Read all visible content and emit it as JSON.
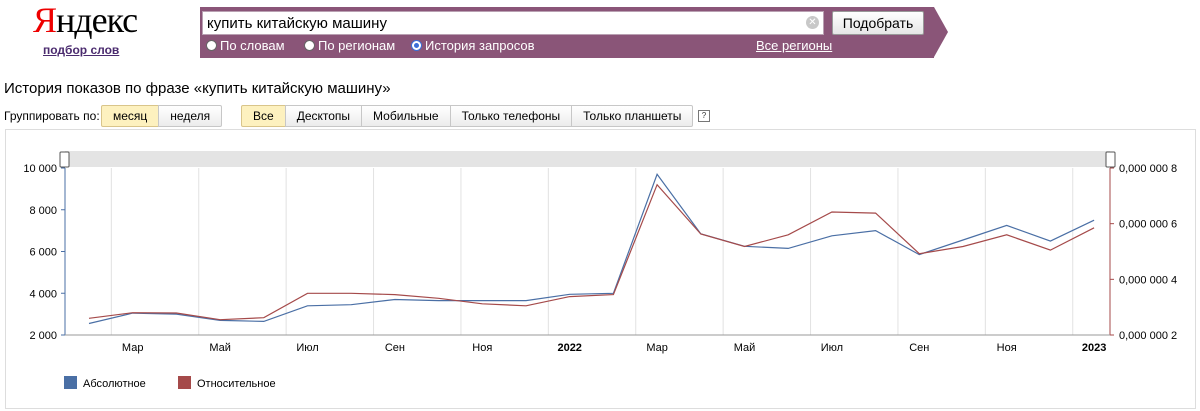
{
  "logo": {
    "first_letter": "Я",
    "rest": "ндекс",
    "subtitle": "подбор слов"
  },
  "search": {
    "value": "купить китайскую машину",
    "submit_label": "Подобрать",
    "clear_icon": "close-circle-icon"
  },
  "modes": [
    {
      "label": "По словам",
      "selected": false
    },
    {
      "label": "По регионам",
      "selected": false
    },
    {
      "label": "История запросов",
      "selected": true
    }
  ],
  "regions_link": "Все регионы",
  "heading": "История показов по фразе «купить китайскую машину»",
  "grouping": {
    "label": "Группировать по:",
    "options": [
      {
        "label": "месяц",
        "active": true
      },
      {
        "label": "неделя",
        "active": false
      }
    ]
  },
  "devices": [
    {
      "label": "Все",
      "active": true
    },
    {
      "label": "Десктопы",
      "active": false
    },
    {
      "label": "Мобильные",
      "active": false
    },
    {
      "label": "Только телефоны",
      "active": false
    },
    {
      "label": "Только планшеты",
      "active": false
    }
  ],
  "help_icon": "?",
  "colors": {
    "band": "#8a5578",
    "absolute": "#4a6fa5",
    "relative": "#a54a4a",
    "active_btn": "#fdf1bf"
  },
  "chart_data": {
    "type": "line",
    "x": [
      "2021-02",
      "2021-03",
      "2021-04",
      "2021-05",
      "2021-06",
      "2021-07",
      "2021-08",
      "2021-09",
      "2021-10",
      "2021-11",
      "2021-12",
      "2022-01",
      "2022-02",
      "2022-03",
      "2022-04",
      "2022-05",
      "2022-06",
      "2022-07",
      "2022-08",
      "2022-09",
      "2022-10",
      "2022-11",
      "2022-12",
      "2023-01"
    ],
    "x_tick_labels": [
      {
        "label": "Мар",
        "bold": false,
        "index": 1
      },
      {
        "label": "Май",
        "bold": false,
        "index": 3
      },
      {
        "label": "Июл",
        "bold": false,
        "index": 5
      },
      {
        "label": "Сен",
        "bold": false,
        "index": 7
      },
      {
        "label": "Ноя",
        "bold": false,
        "index": 9
      },
      {
        "label": "2022",
        "bold": true,
        "index": 11
      },
      {
        "label": "Мар",
        "bold": false,
        "index": 13
      },
      {
        "label": "Май",
        "bold": false,
        "index": 15
      },
      {
        "label": "Июл",
        "bold": false,
        "index": 17
      },
      {
        "label": "Сен",
        "bold": false,
        "index": 19
      },
      {
        "label": "Ноя",
        "bold": false,
        "index": 21
      },
      {
        "label": "2023",
        "bold": true,
        "index": 23
      }
    ],
    "y_left": {
      "ylim": [
        2000,
        10000
      ],
      "ticks": [
        "2 000",
        "4 000",
        "6 000",
        "8 000",
        "10 000"
      ]
    },
    "y_right": {
      "ylim": [
        2e-07,
        8e-07
      ],
      "ticks": [
        "0,000 000 2",
        "0,000 000 4",
        "0,000 000 6",
        "0,000 000 8"
      ]
    },
    "series": [
      {
        "name": "Абсолютное",
        "axis": "left",
        "values": [
          2550,
          3050,
          3000,
          2700,
          2650,
          3400,
          3450,
          3700,
          3650,
          3650,
          3650,
          3950,
          4000,
          9700,
          6850,
          6250,
          6150,
          6750,
          7000,
          5850,
          6550,
          7250,
          6500,
          7500
        ]
      },
      {
        "name": "Относительное",
        "axis": "right",
        "values": [
          2.6e-07,
          2.8e-07,
          2.79e-07,
          2.55e-07,
          2.62e-07,
          3.5e-07,
          3.5e-07,
          3.45e-07,
          3.32e-07,
          3.12e-07,
          3.05e-07,
          3.38e-07,
          3.45e-07,
          7.4e-07,
          5.63e-07,
          5.18e-07,
          5.6e-07,
          6.42e-07,
          6.38e-07,
          4.92e-07,
          5.18e-07,
          5.6e-07,
          5.05e-07,
          5.85e-07
        ]
      }
    ],
    "grid": true,
    "legend": "bottom-left"
  }
}
